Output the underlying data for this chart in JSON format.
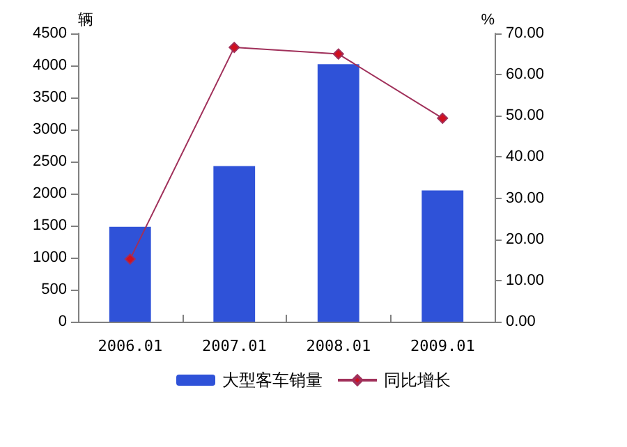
{
  "chart_data": {
    "type": "bar",
    "ylabel": "辆",
    "y2label": "%",
    "categories": [
      "2006.01",
      "2007.01",
      "2008.01",
      "2009.01"
    ],
    "series": [
      {
        "name": "大型客车销量",
        "color": "#2f52d8",
        "values": [
          1480,
          2430,
          4020,
          2050
        ]
      },
      {
        "name": "同比增长",
        "type": "line",
        "axis": "y2",
        "color": "#a0305a",
        "marker": "diamond",
        "values": [
          15.2,
          66.6,
          65.0,
          49.4
        ]
      }
    ],
    "ylim": [
      0,
      4500
    ],
    "yticks": [
      0,
      500,
      1000,
      1500,
      2000,
      2500,
      3000,
      3500,
      4000,
      4500
    ],
    "y2lim": [
      0,
      70
    ],
    "y2ticks": [
      {
        "value": 0,
        "label": "0.00"
      },
      {
        "value": 10,
        "label": "10.00"
      },
      {
        "value": 20,
        "label": "20.00"
      },
      {
        "value": 30,
        "label": "30.00"
      },
      {
        "value": 40,
        "label": "40.00"
      },
      {
        "value": 50,
        "label": "50.00"
      },
      {
        "value": 60,
        "label": "60.00"
      },
      {
        "value": 70,
        "label": "70.00"
      }
    ],
    "legend": "bottom",
    "grid": false
  }
}
